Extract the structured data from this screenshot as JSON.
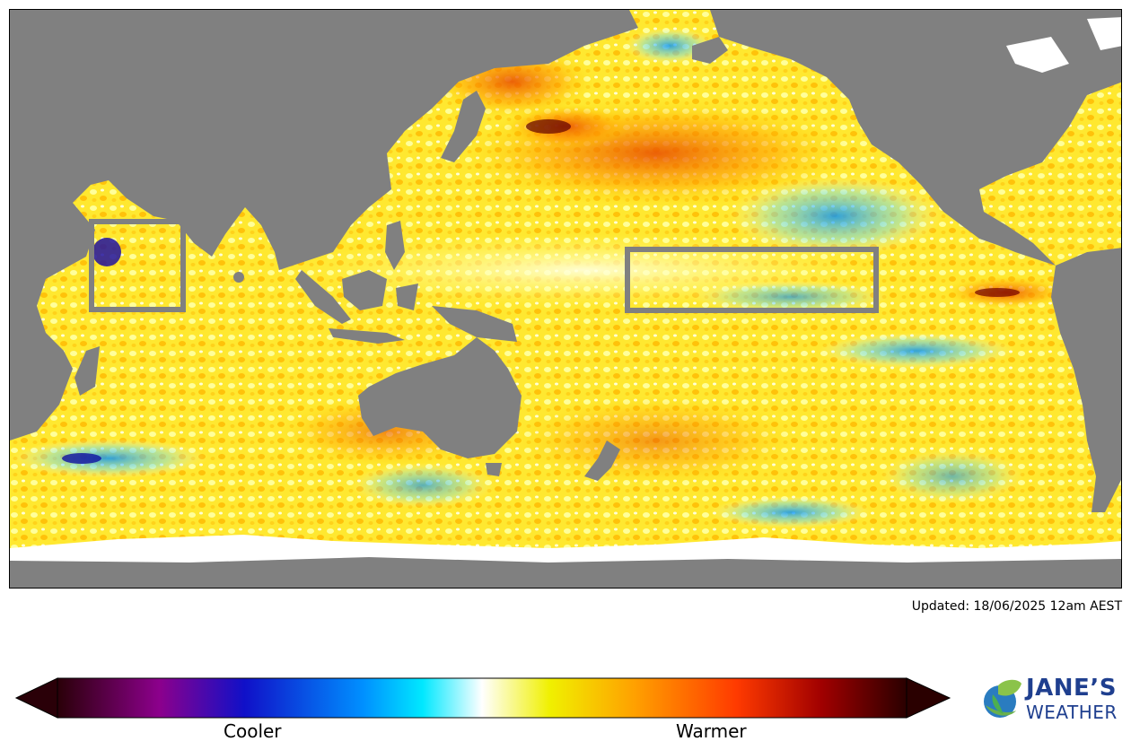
{
  "map": {
    "land_color": "#808080",
    "ice_color": "#ffffff",
    "box_color": "#808080"
  },
  "updated_text": "Updated: 18/06/2025 12am AEST",
  "colorbar": {
    "cooler_label": "Cooler",
    "warmer_label": "Warmer",
    "stops": [
      "#2a0008",
      "#8c008c",
      "#1010c8",
      "#0090ff",
      "#00e8ff",
      "#ffffff",
      "#f0f000",
      "#ffa000",
      "#ff3a00",
      "#a00000",
      "#2a0000"
    ]
  },
  "logo": {
    "line1": "JANE’S",
    "line2": "WEATHER",
    "icon": "leaf-globe-icon"
  }
}
